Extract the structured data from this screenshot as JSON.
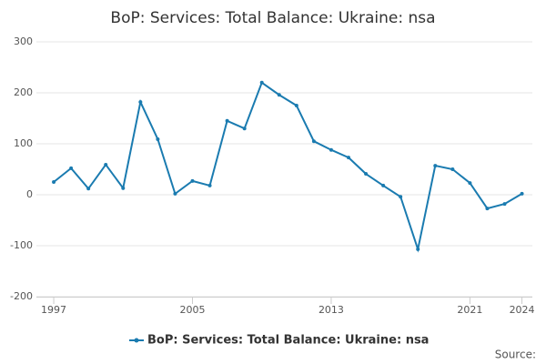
{
  "chart_data": {
    "type": "line",
    "title": "BoP: Services: Total Balance: Ukraine: nsa",
    "x": [
      1997,
      1998,
      1999,
      2000,
      2001,
      2002,
      2003,
      2004,
      2005,
      2006,
      2007,
      2008,
      2009,
      2010,
      2011,
      2012,
      2013,
      2014,
      2015,
      2016,
      2017,
      2018,
      2019,
      2020,
      2021,
      2022,
      2023,
      2024
    ],
    "series": [
      {
        "name": "BoP: Services: Total Balance: Ukraine: nsa",
        "color": "#1a7bb0",
        "values": [
          25,
          52,
          12,
          59,
          13,
          182,
          109,
          2,
          27,
          18,
          145,
          130,
          220,
          196,
          175,
          105,
          88,
          73,
          41,
          18,
          -4,
          -107,
          57,
          50,
          23,
          -27,
          -18,
          2
        ]
      }
    ],
    "xlim": [
      1996,
      2024.6
    ],
    "xticks": [
      1997,
      2005,
      2013,
      2021,
      2024
    ],
    "ylim": [
      -200,
      300
    ],
    "yticks": [
      -200,
      -100,
      0,
      100,
      200,
      300
    ],
    "grid": true,
    "source": "Source:"
  }
}
